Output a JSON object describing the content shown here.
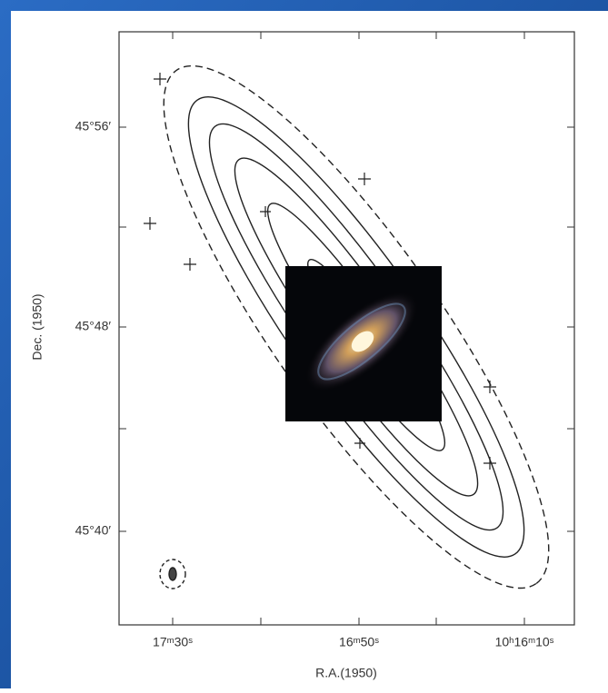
{
  "map": {
    "y_axis_label": "Dec. (1950)",
    "x_axis_label": "R.A.(1950)",
    "y_tick_labels": [
      "45°56′",
      "45°48′",
      "45°40′"
    ],
    "x_tick_labels": [
      "17ᵐ30ˢ",
      "16ᵐ50ˢ",
      "10ʰ16ᵐ10ˢ"
    ]
  }
}
